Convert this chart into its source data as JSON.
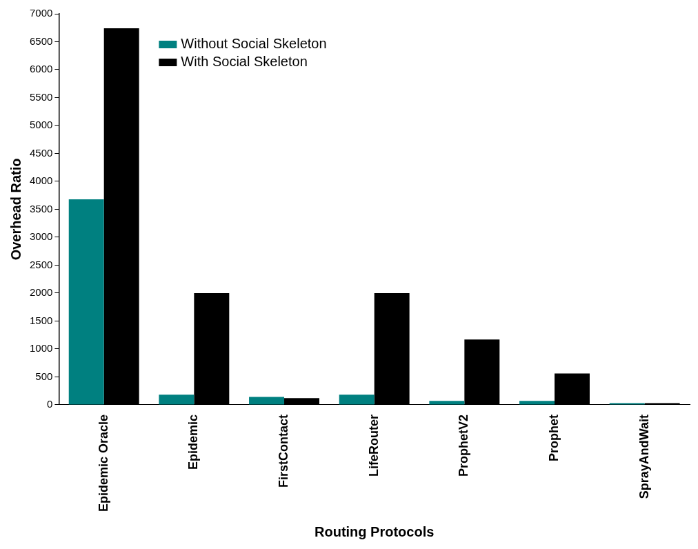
{
  "chart_data": {
    "type": "bar",
    "xlabel": "Routing Protocols",
    "ylabel": "Overhead Ratio",
    "categories": [
      "Epidemic Oracle",
      "Epidemic",
      "FirstContact",
      "LifeRouter",
      "ProphetV2",
      "Prophet",
      "SprayAndWait"
    ],
    "series": [
      {
        "name": "Without Social Skeleton",
        "color": "#008080",
        "values": [
          3680,
          180,
          140,
          180,
          70,
          70,
          30
        ]
      },
      {
        "name": "With Social Skeleton",
        "color": "#000000",
        "values": [
          6740,
          2000,
          120,
          2000,
          1170,
          560,
          30
        ]
      }
    ],
    "ylim": [
      0,
      7000
    ],
    "yticks": [
      0,
      500,
      1000,
      1500,
      2000,
      2500,
      3000,
      3500,
      4000,
      4500,
      5000,
      5500,
      6000,
      6500,
      7000
    ],
    "grid": false,
    "legend": "top left"
  }
}
